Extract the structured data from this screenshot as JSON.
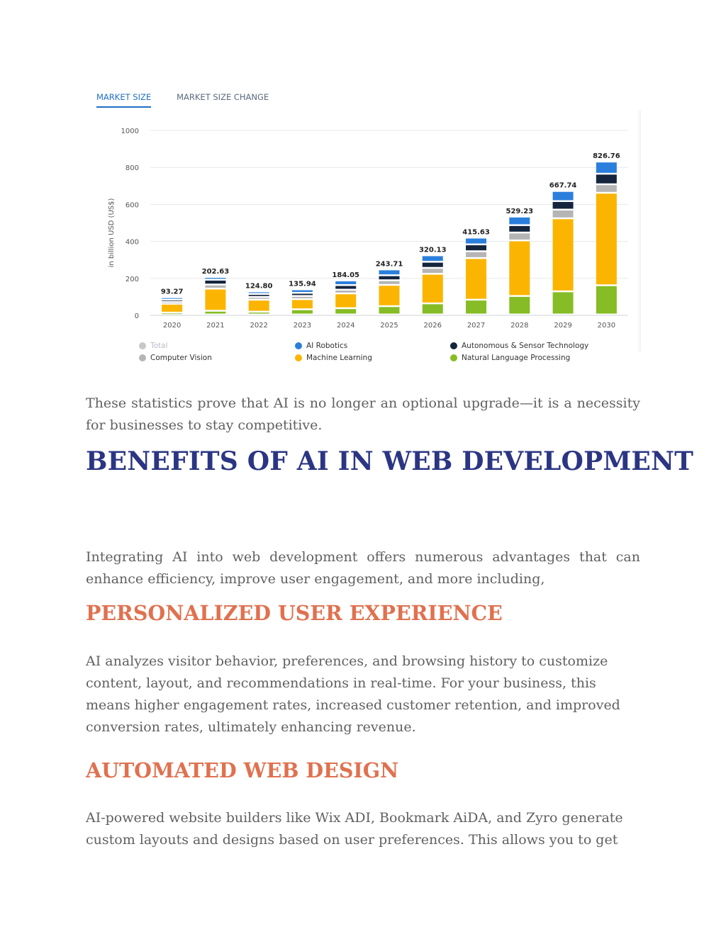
{
  "tabs": [
    {
      "label": "MARKET SIZE",
      "active": true
    },
    {
      "label": "MARKET SIZE CHANGE",
      "active": false
    }
  ],
  "chart_data": {
    "type": "bar",
    "stacked": true,
    "ylabel": "in billion USD (US$)",
    "ylim": [
      0,
      1000
    ],
    "yticks": [
      0,
      200,
      400,
      600,
      800,
      1000
    ],
    "grid": true,
    "categories": [
      "2020",
      "2021",
      "2022",
      "2023",
      "2024",
      "2025",
      "2026",
      "2027",
      "2028",
      "2029",
      "2030"
    ],
    "totals": [
      93.27,
      202.63,
      124.8,
      135.94,
      184.05,
      243.71,
      320.13,
      415.63,
      529.23,
      667.74,
      826.76
    ],
    "total_labels": [
      "93.27",
      "202.63",
      "124.80",
      "135.94",
      "184.05",
      "243.71",
      "320.13",
      "415.63",
      "529.23",
      "667.74",
      "826.76"
    ],
    "series": [
      {
        "name": "Natural Language Processing",
        "color": "#86bc25",
        "values": [
          10,
          20,
          15,
          28,
          34,
          45,
          60,
          80,
          100,
          125,
          158
        ]
      },
      {
        "name": "Machine Learning",
        "color": "#fbb500",
        "values": [
          48,
          120,
          65,
          55,
          80,
          115,
          160,
          225,
          300,
          395,
          500
        ]
      },
      {
        "name": "Computer Vision",
        "color": "#b5b5b5",
        "values": [
          10,
          22,
          15,
          17,
          20,
          25,
          32,
          37,
          43,
          47,
          46
        ]
      },
      {
        "name": "Autonomous & Sensor Technology",
        "color": "#15253e",
        "values": [
          12,
          26,
          16,
          17,
          25,
          27,
          33,
          37,
          40,
          46,
          57
        ]
      },
      {
        "name": "AI Robotics",
        "color": "#2b7fdc",
        "values": [
          13.27,
          14.63,
          13.8,
          18.94,
          25.05,
          31.71,
          35.13,
          36.63,
          46.23,
          54.74,
          65.76
        ]
      }
    ],
    "legend": [
      {
        "name": "Total",
        "color": "#c7c7c7",
        "muted": true
      },
      {
        "name": "AI Robotics",
        "color": "#2b7fdc"
      },
      {
        "name": "Autonomous & Sensor Technology",
        "color": "#15253e"
      },
      {
        "name": "Computer Vision",
        "color": "#b5b5b5"
      },
      {
        "name": "Machine Learning",
        "color": "#fbb500"
      },
      {
        "name": "Natural Language Processing",
        "color": "#86bc25"
      }
    ],
    "legend_position": "bottom"
  },
  "text": {
    "p1": "These statistics prove that AI is no longer an optional upgrade—it is a necessity for businesses to stay competitive.",
    "h1": "BENEFITS OF AI IN WEB DEVELOPMENT",
    "p2": "Integrating AI into web development offers numerous advantages that can enhance efficiency, improve user engagement, and more including,",
    "h2a": "PERSONALIZED USER EXPERIENCE",
    "p3": "AI analyzes visitor behavior, preferences, and browsing history to customize content, layout, and recommendations in real-time. For your business, this means higher engagement rates, increased customer retention, and improved conversion rates, ultimately enhancing revenue.",
    "h2b": "AUTOMATED WEB DESIGN",
    "p4": "AI-powered website builders like Wix ADI, Bookmark AiDA, and Zyro generate custom layouts and designs based on user preferences. This allows you to get"
  },
  "colors": {
    "heading_primary": "#2b3583",
    "heading_accent": "#e0714f",
    "body_text": "#606060",
    "tab_active": "#1f6fc4"
  }
}
